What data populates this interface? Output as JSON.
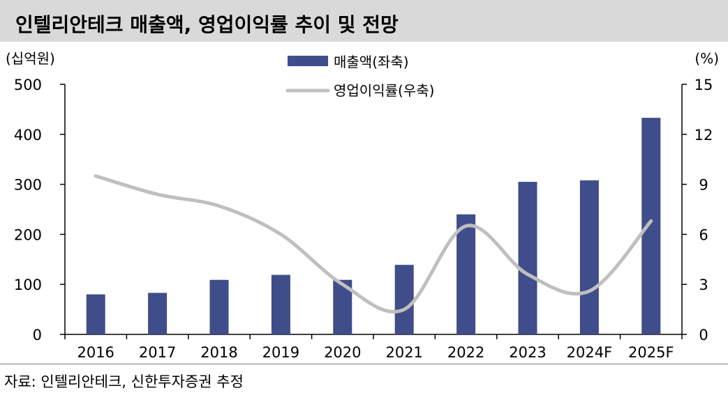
{
  "title": "인텔리안테크 매출액, 영업이익률 추이 및 전망",
  "source": "자료: 인텔리안테크, 신한투자증권 추정",
  "colors": {
    "bar": "#3f4d8a",
    "line": "#bfbfbf",
    "title_bg": "#d9d9d9"
  },
  "chart_data": {
    "type": "bar+line",
    "categories": [
      "2016",
      "2017",
      "2018",
      "2019",
      "2020",
      "2021",
      "2022",
      "2023",
      "2024F",
      "2025F"
    ],
    "series": [
      {
        "name": "매출액(좌축)",
        "kind": "bar",
        "axis": "left",
        "values": [
          80,
          83,
          109,
          119,
          109,
          139,
          240,
          305,
          308,
          433
        ]
      },
      {
        "name": "영업이익률(우축)",
        "kind": "line",
        "axis": "right",
        "values": [
          9.5,
          8.4,
          7.7,
          6.0,
          3.0,
          1.5,
          6.5,
          3.6,
          2.6,
          6.8
        ]
      }
    ],
    "left_axis": {
      "label": "(십억원)",
      "ylim": [
        0,
        500
      ],
      "ticks": [
        0,
        100,
        200,
        300,
        400,
        500
      ]
    },
    "right_axis": {
      "label": "(%)",
      "ylim": [
        0,
        15
      ],
      "ticks": [
        0,
        3,
        6,
        9,
        12,
        15
      ]
    },
    "legend_position": "top-center",
    "grid": false
  }
}
